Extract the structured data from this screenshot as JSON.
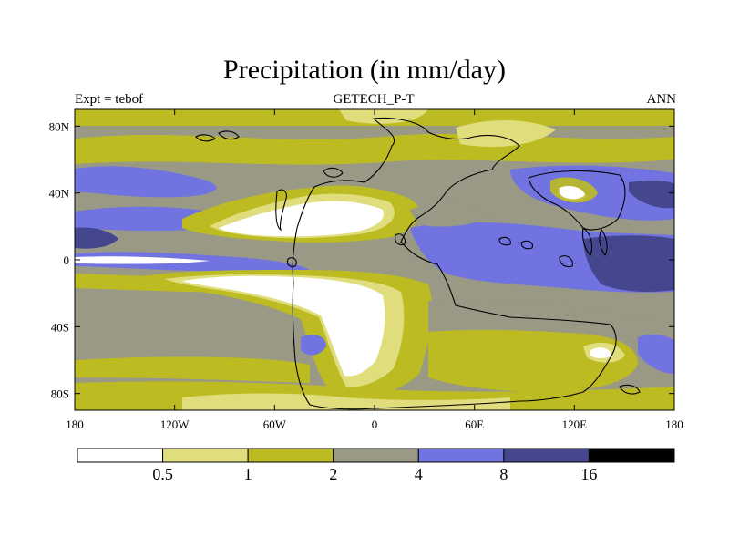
{
  "chart_data": {
    "type": "heatmap",
    "title": "Precipitation (in mm/day)",
    "subtitle_left": "Expt = tebof",
    "subtitle_center": "GETECH_P-T",
    "subtitle_right": "ANN",
    "x_ticks": [
      "180",
      "120W",
      "60W",
      "0",
      "60E",
      "120E",
      "180"
    ],
    "y_ticks": [
      "80N",
      "40N",
      "0",
      "40S",
      "80S"
    ],
    "xlim": [
      -180,
      180
    ],
    "ylim": [
      -90,
      90
    ],
    "colorbar": {
      "levels": [
        "0.5",
        "1",
        "2",
        "4",
        "8",
        "16"
      ],
      "colors": [
        "#ffffff",
        "#e0dd7c",
        "#bdbb22",
        "#999985",
        "#7073e0",
        "#45478e",
        "#000000"
      ]
    }
  }
}
